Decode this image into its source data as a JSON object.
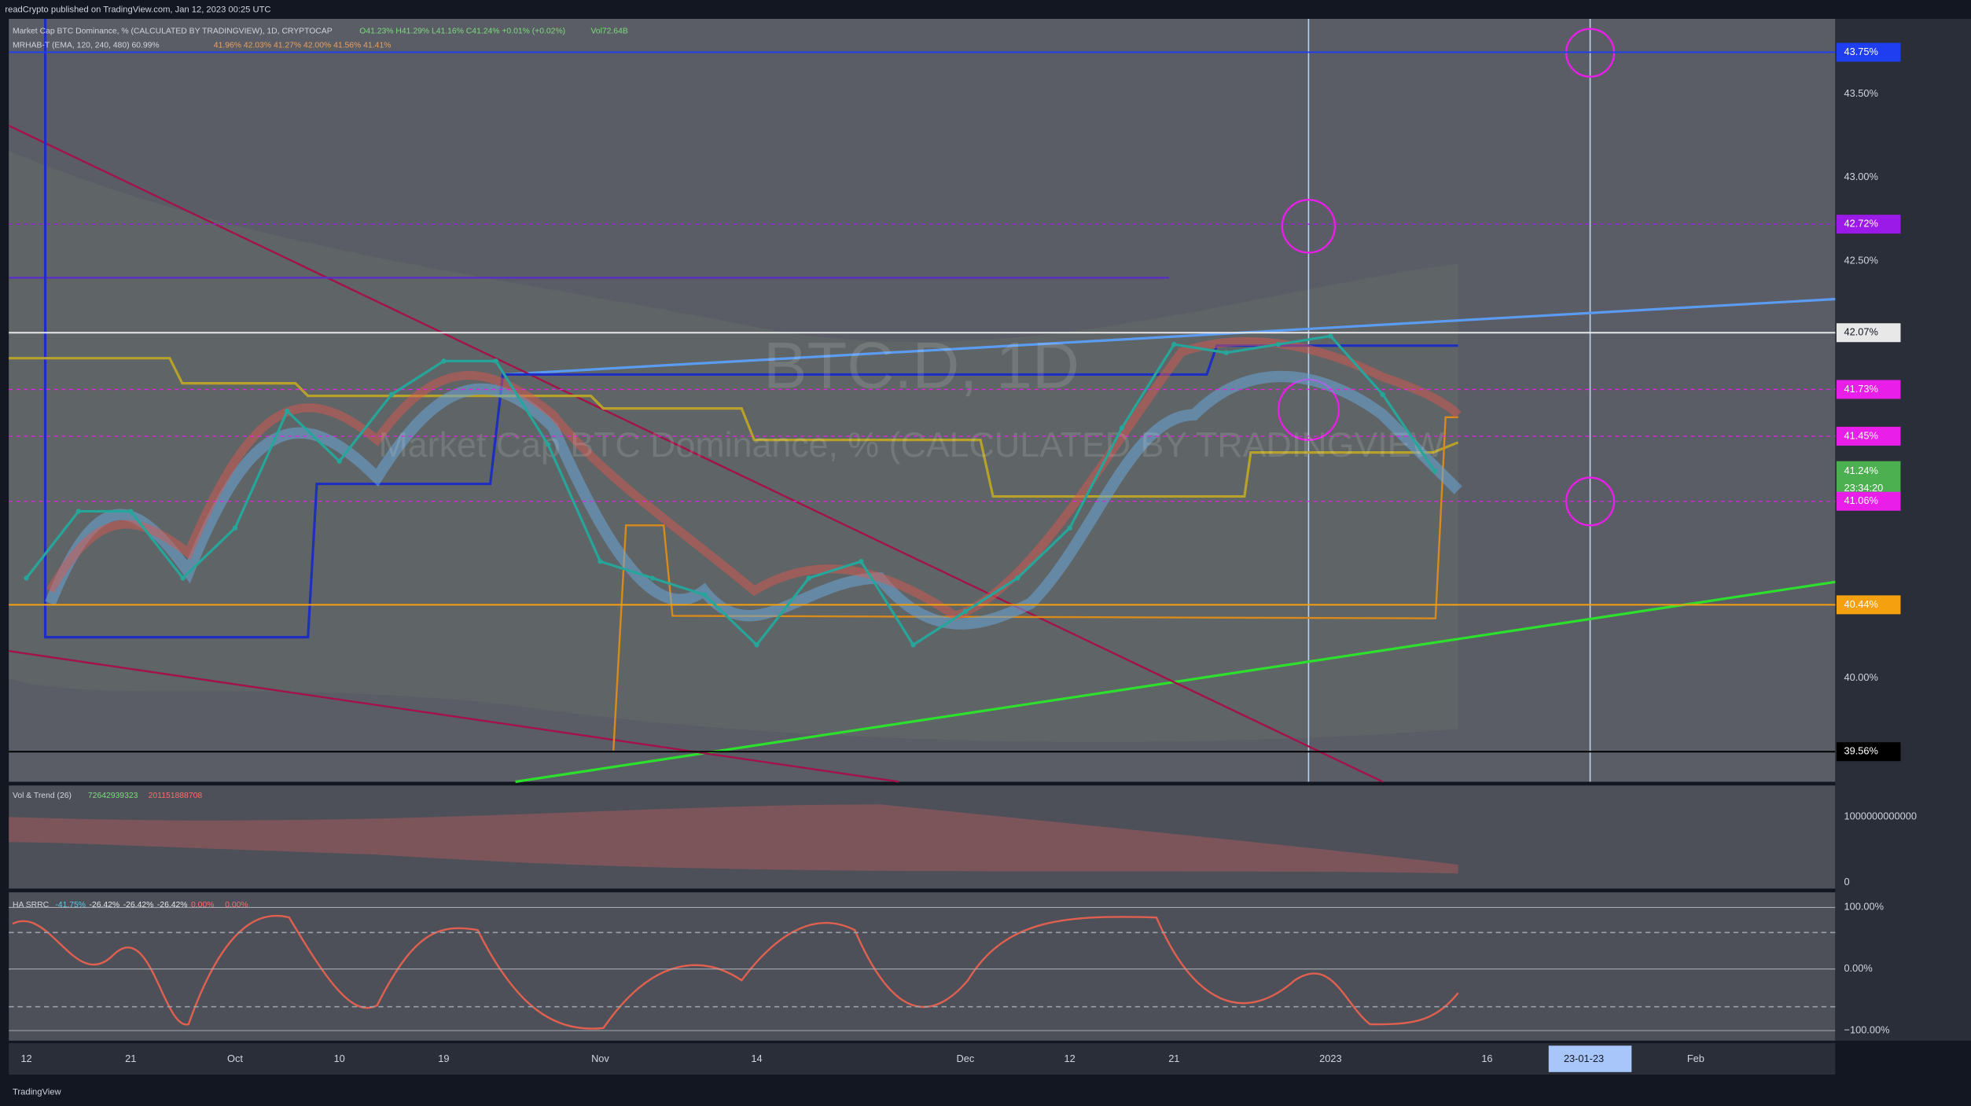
{
  "header": {
    "published": "readCrypto published on TradingView.com, Jan 12, 2023 00:25 UTC"
  },
  "legend": {
    "symbol": "Market Cap BTC Dominance, % (CALCULATED BY TRADINGVIEW), 1D, CRYPTOCAP",
    "ohlc": "O41.23% H41.29% L41.16% C41.24% +0.01% (+0.02%)",
    "volume": "Vol72.64B",
    "indicator": "MRHAB-T (EMA, 120, 240, 480) 60.99%",
    "indicator_values": "41.96% 42.03% 41.27% 42.00% 41.56% 41.41%"
  },
  "watermark": {
    "symbol": "BTC.D, 1D",
    "description": "Market Cap BTC Dominance, % (CALCULATED BY TRADINGVIEW"
  },
  "chart_data": {
    "type": "line",
    "color": "#26a69a",
    "categories": [
      "12",
      null,
      "21",
      null,
      "Oct",
      null,
      "10",
      null,
      "19",
      null,
      null,
      "Nov",
      null,
      null,
      "14",
      null,
      null,
      null,
      "Dec",
      null,
      "12",
      null,
      "21",
      null,
      null,
      "2023",
      null,
      null,
      "16",
      null,
      "23-01-23",
      null,
      "Feb"
    ],
    "values": [
      40.6,
      41.0,
      41.0,
      40.6,
      40.9,
      41.6,
      41.3,
      41.7,
      41.9,
      41.9,
      41.4,
      40.7,
      40.6,
      40.5,
      40.2,
      40.6,
      40.7,
      40.2,
      40.4,
      40.6,
      40.9,
      41.5,
      42.0,
      41.95,
      42.0,
      42.05,
      41.7,
      41.24,
      null,
      null,
      null,
      null,
      null
    ],
    "ylim": [
      39.38,
      43.95
    ],
    "yticks": [
      {
        "value": 43.5,
        "label": "43.50%"
      },
      {
        "value": 43.0,
        "label": "43.00%"
      },
      {
        "value": 42.5,
        "label": "42.50%"
      },
      {
        "value": 40.0,
        "label": "40.00%"
      }
    ],
    "grid": false,
    "levels": [
      {
        "value": 43.75,
        "label": "43.75%",
        "color": "#1e3ef0"
      },
      {
        "value": 42.72,
        "label": "42.72%",
        "color": "#9c1ae8"
      },
      {
        "value": 42.07,
        "label": "42.07%",
        "color": "#e8e8e8"
      },
      {
        "value": 41.73,
        "label": "41.73%",
        "color": "#e91ee8"
      },
      {
        "value": 41.45,
        "label": "41.45%",
        "color": "#e91ee8"
      },
      {
        "value": 41.24,
        "label": "41.24%",
        "color": "#4caf50",
        "countdown": "23:34:20"
      },
      {
        "value": 41.06,
        "label": "41.06%",
        "color": "#e91ee8"
      },
      {
        "value": 40.44,
        "label": "40.44%",
        "color": "#f5a00f"
      },
      {
        "value": 39.56,
        "label": "39.56%",
        "color": "#000000"
      }
    ]
  },
  "panes": [
    {
      "title": "Vol & Trend (26)",
      "values_text": [
        "72642939323",
        "201151888708"
      ],
      "yticks": [
        1000000000000,
        0
      ]
    },
    {
      "title": "HA SRRC",
      "values_text": [
        "-41.75%",
        "-26.42%",
        "-26.42%",
        "-26.42%",
        "0.00%",
        "0.00%"
      ],
      "yticks": [
        {
          "value": 100,
          "label": "100.00%"
        },
        {
          "value": 0,
          "label": "0.00%"
        },
        {
          "value": -100,
          "label": "−100.00%"
        }
      ]
    }
  ],
  "footer": {
    "brand": "TradingView"
  }
}
